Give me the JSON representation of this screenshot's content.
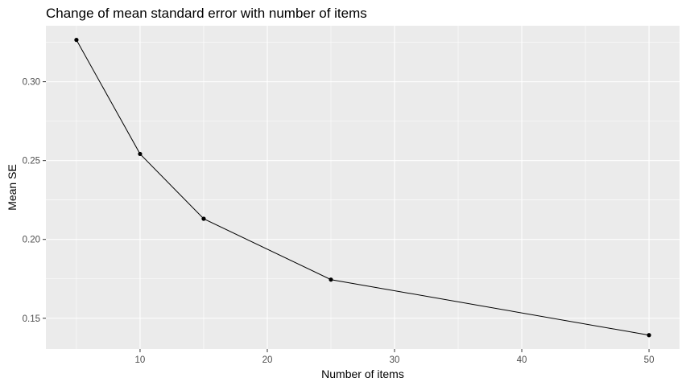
{
  "chart_data": {
    "type": "line",
    "title": "Change of mean standard error with number of items",
    "xlabel": "Number of items",
    "ylabel": "Mean SE",
    "x": [
      5,
      10,
      15,
      25,
      50
    ],
    "series": [
      {
        "values": [
          0.3265,
          0.2542,
          0.2131,
          0.1745,
          0.1393
        ]
      }
    ],
    "xlim": [
      2.6,
      52.4
    ],
    "ylim": [
      0.1305,
      0.3355
    ],
    "xticks": [
      10,
      20,
      30,
      40,
      50
    ],
    "xtick_labels": [
      "10",
      "20",
      "30",
      "40",
      "50"
    ],
    "yticks": [
      0.15,
      0.2,
      0.25,
      0.3
    ],
    "ytick_labels": [
      "0.15",
      "0.20",
      "0.25",
      "0.30"
    ],
    "grid": true,
    "markers": true,
    "colors": {
      "panel_background": "#ebebeb",
      "gridline": "#ffffff",
      "line": "#000000",
      "marker": "#000000",
      "tick_label": "#4d4d4d",
      "tick_mark": "#333333"
    }
  }
}
